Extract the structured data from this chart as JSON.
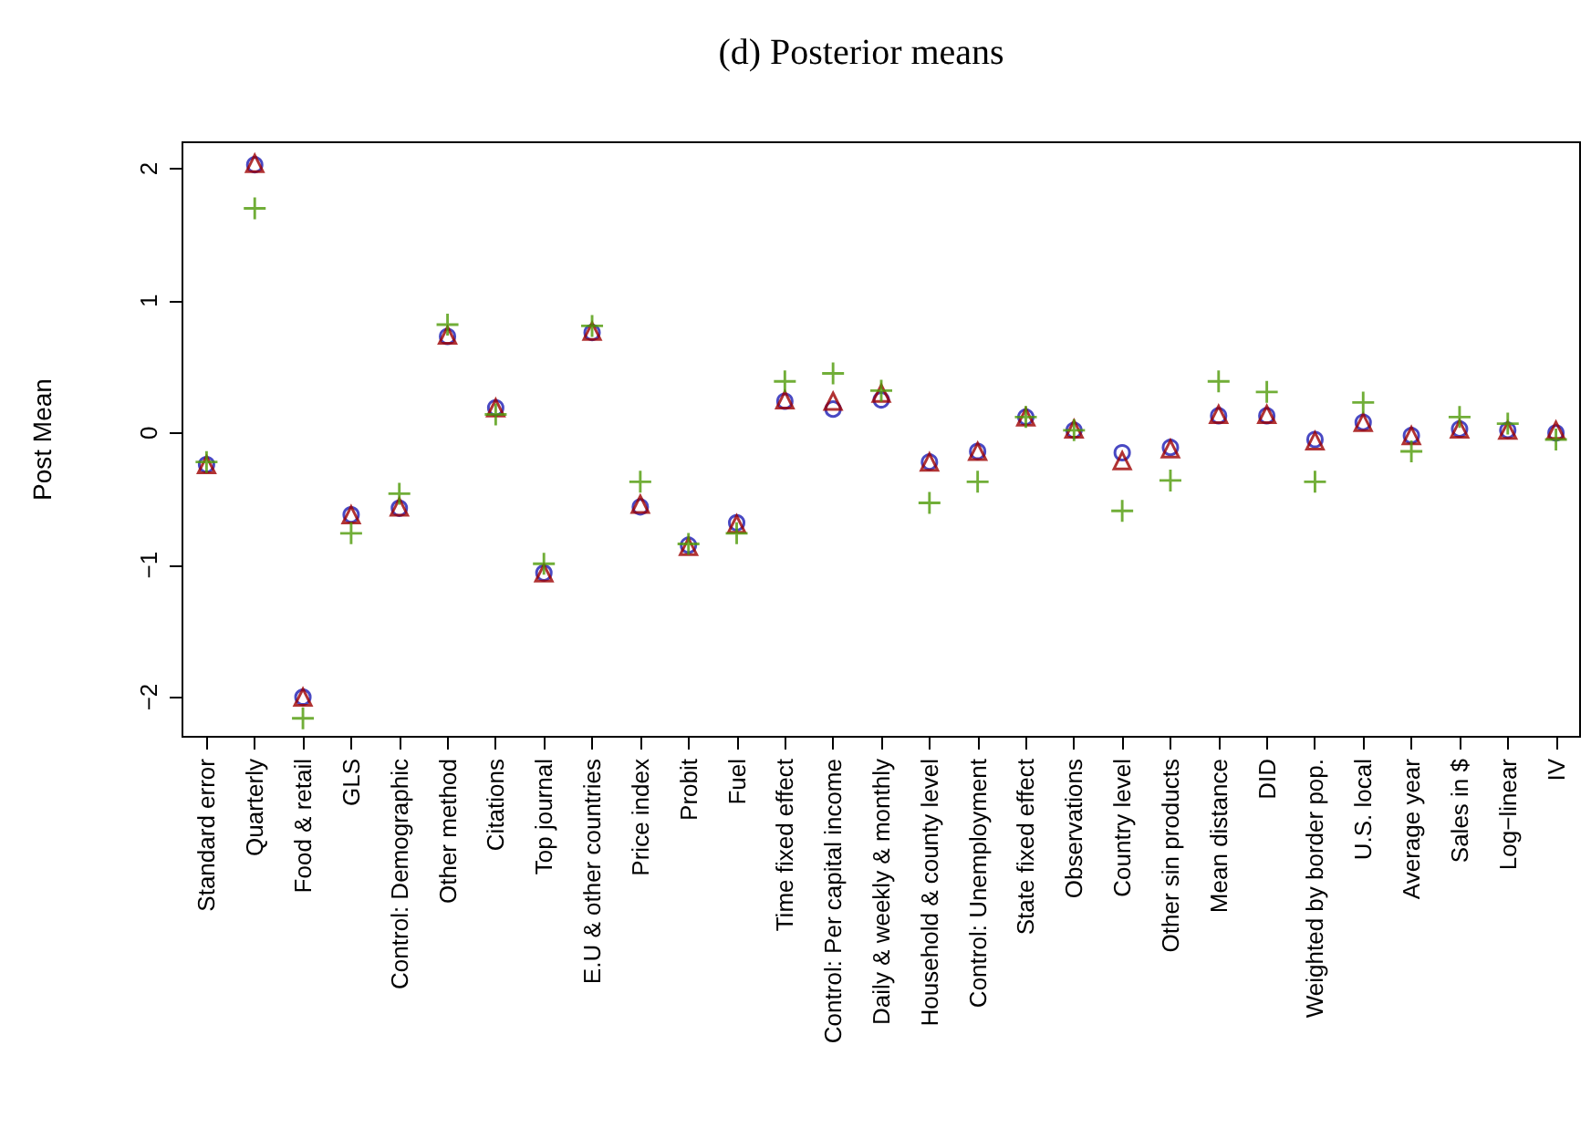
{
  "chart_data": {
    "type": "scatter",
    "title": "(d) Posterior means",
    "ylabel": "Post Mean",
    "categories": [
      "Standard error",
      "Quarterly",
      "Food & retail",
      "GLS",
      "Control: Demographic",
      "Other method",
      "Citations",
      "Top journal",
      "E.U & other countries",
      "Price index",
      "Probit",
      "Fuel",
      "Time fixed effect",
      "Control: Per capital income",
      "Daily & weekly & monthly",
      "Household & county level",
      "Control: Unemployment",
      "State fixed effect",
      "Observations",
      "Country level",
      "Other sin products",
      "Mean distance",
      "DID",
      "Weighted by border pop.",
      "U.S. local",
      "Average year",
      "Sales in $",
      "Log−linear",
      "IV"
    ],
    "ylim": [
      -2.3,
      2.2
    ],
    "yticks": [
      -2,
      -1,
      0,
      1,
      2
    ],
    "series": [
      {
        "color": "#1c1cb4",
        "marker": "circle",
        "values": [
          -0.24,
          2.03,
          -2.0,
          -0.62,
          -0.57,
          0.73,
          0.19,
          -1.06,
          0.76,
          -0.56,
          -0.85,
          -0.68,
          0.24,
          0.18,
          0.25,
          -0.22,
          -0.14,
          0.12,
          0.02,
          -0.15,
          -0.11,
          0.13,
          0.13,
          -0.05,
          0.08,
          -0.02,
          0.03,
          0.02,
          0.0
        ]
      },
      {
        "color": "#9e0000",
        "marker": "triangle",
        "values": [
          -0.24,
          2.04,
          -2.0,
          -0.62,
          -0.56,
          0.74,
          0.19,
          -1.06,
          0.77,
          -0.54,
          -0.86,
          -0.69,
          0.25,
          0.24,
          0.3,
          -0.22,
          -0.14,
          0.12,
          0.03,
          -0.21,
          -0.12,
          0.14,
          0.14,
          -0.06,
          0.08,
          -0.02,
          0.03,
          0.02,
          0.02
        ]
      },
      {
        "color": "#4e9a06",
        "marker": "cross",
        "values": [
          -0.22,
          1.7,
          -2.16,
          -0.76,
          -0.46,
          0.82,
          0.14,
          -0.99,
          0.81,
          -0.37,
          -0.84,
          -0.76,
          0.39,
          0.45,
          0.32,
          -0.53,
          -0.37,
          0.12,
          0.02,
          -0.59,
          -0.36,
          0.39,
          0.31,
          -0.37,
          0.23,
          -0.14,
          0.12,
          0.07,
          -0.05
        ]
      }
    ]
  }
}
